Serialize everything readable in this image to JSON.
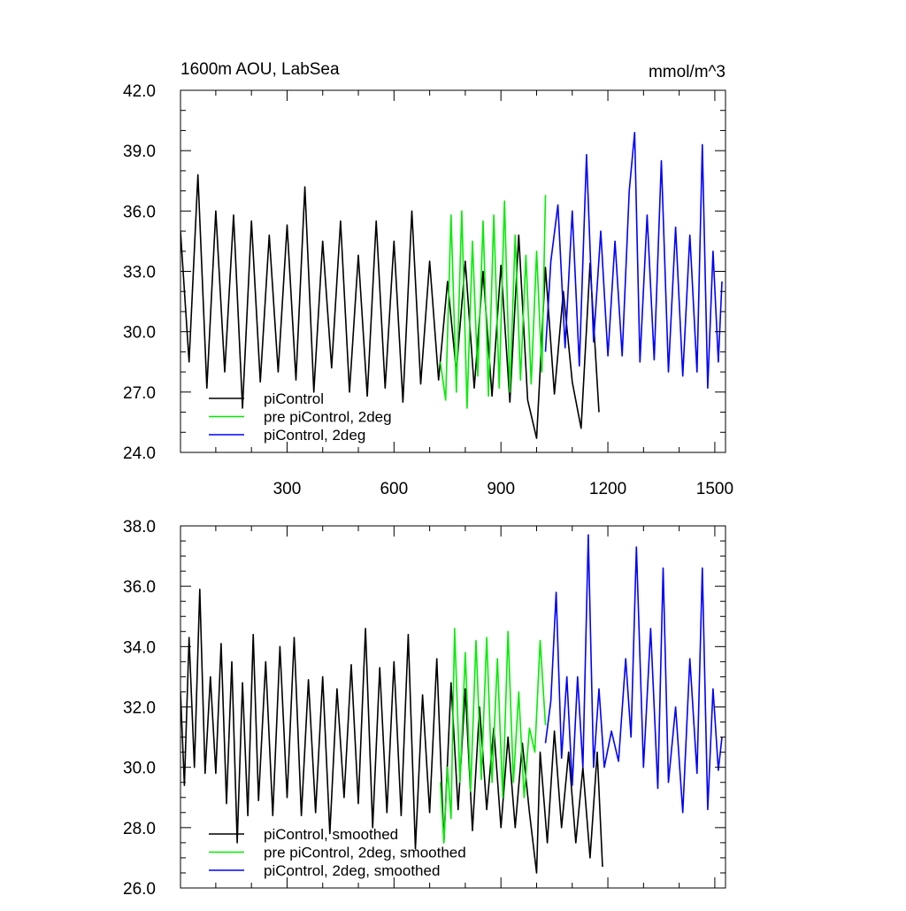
{
  "colors": {
    "piControl": "#000000",
    "pre_piControl_2deg": "#00ee00",
    "piControl_2deg": "#0000ff",
    "axis": "#000000",
    "background": "#ffffff"
  },
  "chart_data": [
    {
      "type": "line",
      "title": "1600m AOU, LabSea",
      "units": "mmol/m^3",
      "xlabel": "",
      "ylabel": "",
      "xlim": [
        1,
        1530
      ],
      "ylim": [
        24.0,
        42.0
      ],
      "x_ticks": [
        300,
        600,
        900,
        1200,
        1500
      ],
      "x_tick_labels": [
        "300",
        "600",
        "900",
        "1200",
        "1500"
      ],
      "y_ticks": [
        24.0,
        27.0,
        30.0,
        33.0,
        36.0,
        39.0,
        42.0
      ],
      "y_tick_labels": [
        "24.0",
        "27.0",
        "30.0",
        "33.0",
        "36.0",
        "39.0",
        "42.0"
      ],
      "grid": false,
      "legend_position": "bottom-left",
      "series": [
        {
          "name": "piControl",
          "color_key": "piControl",
          "x": [
            1,
            25,
            50,
            75,
            100,
            125,
            150,
            175,
            200,
            225,
            250,
            275,
            300,
            325,
            350,
            375,
            400,
            425,
            450,
            475,
            500,
            525,
            550,
            575,
            600,
            625,
            650,
            675,
            700,
            725,
            750,
            775,
            800,
            825,
            850,
            875,
            900,
            925,
            950,
            975,
            1000,
            1025,
            1050,
            1075,
            1100,
            1125,
            1150,
            1175
          ],
          "values": [
            35.0,
            28.5,
            37.8,
            27.2,
            36.0,
            28.0,
            35.8,
            26.2,
            35.5,
            27.5,
            34.8,
            28.0,
            35.3,
            27.6,
            37.2,
            27.0,
            34.5,
            28.2,
            35.5,
            27.0,
            33.8,
            26.8,
            35.5,
            27.2,
            34.5,
            26.5,
            36.0,
            27.4,
            33.5,
            27.6,
            32.5,
            28.0,
            33.5,
            27.2,
            33.0,
            26.8,
            33.3,
            26.5,
            34.8,
            26.6,
            24.7,
            33.2,
            26.9,
            32.0,
            27.5,
            25.2,
            33.4,
            26.0
          ]
        },
        {
          "name": "pre piControl, 2deg",
          "color_key": "pre_piControl_2deg",
          "x": [
            730,
            745,
            760,
            775,
            790,
            805,
            820,
            835,
            850,
            865,
            880,
            895,
            910,
            925,
            940,
            955,
            970,
            985,
            1000,
            1015,
            1025
          ],
          "values": [
            28.5,
            26.6,
            35.8,
            27.0,
            36.0,
            26.2,
            34.5,
            27.8,
            35.5,
            26.8,
            35.8,
            27.2,
            36.5,
            27.0,
            34.8,
            27.6,
            33.8,
            27.4,
            34.0,
            28.0,
            36.8
          ]
        },
        {
          "name": "piControl, 2deg",
          "color_key": "piControl_2deg",
          "x": [
            1025,
            1040,
            1060,
            1080,
            1100,
            1120,
            1140,
            1160,
            1180,
            1200,
            1220,
            1240,
            1260,
            1275,
            1290,
            1310,
            1330,
            1350,
            1370,
            1390,
            1410,
            1430,
            1450,
            1465,
            1480,
            1495,
            1510,
            1520
          ],
          "values": [
            29.0,
            33.5,
            36.3,
            29.2,
            36.0,
            28.3,
            38.8,
            29.5,
            35.0,
            28.8,
            34.5,
            28.8,
            37.0,
            39.9,
            28.5,
            35.8,
            28.6,
            38.5,
            28.0,
            35.2,
            27.8,
            34.8,
            28.0,
            39.3,
            27.2,
            34.0,
            28.5,
            32.5
          ]
        }
      ],
      "legend": [
        "piControl",
        "pre piControl, 2deg",
        "piControl, 2deg"
      ]
    },
    {
      "type": "line",
      "title": "",
      "units": "",
      "xlabel": "",
      "ylabel": "",
      "xlim": [
        1,
        1530
      ],
      "ylim": [
        26.0,
        38.0
      ],
      "x_ticks": [
        300,
        600,
        900,
        1200,
        1500
      ],
      "x_tick_labels": [],
      "y_ticks": [
        26.0,
        28.0,
        30.0,
        32.0,
        34.0,
        36.0,
        38.0
      ],
      "y_tick_labels": [
        "26.0",
        "28.0",
        "30.0",
        "32.0",
        "34.0",
        "36.0",
        "38.0"
      ],
      "grid": false,
      "legend_position": "bottom-left",
      "series": [
        {
          "name": "piControl, smoothed",
          "color_key": "piControl",
          "x": [
            1,
            12,
            25,
            40,
            55,
            70,
            85,
            100,
            115,
            130,
            145,
            160,
            175,
            190,
            205,
            220,
            240,
            260,
            280,
            300,
            320,
            340,
            360,
            380,
            400,
            420,
            440,
            460,
            480,
            500,
            520,
            540,
            560,
            580,
            600,
            620,
            640,
            660,
            680,
            700,
            720,
            740,
            760,
            780,
            800,
            820,
            840,
            860,
            880,
            900,
            920,
            940,
            960,
            980,
            1000,
            1010,
            1030,
            1050,
            1070,
            1090,
            1110,
            1130,
            1150,
            1170,
            1185
          ],
          "values": [
            32.5,
            29.4,
            34.3,
            30.0,
            35.9,
            29.8,
            33.0,
            29.8,
            34.1,
            28.8,
            33.5,
            27.5,
            32.8,
            28.4,
            34.4,
            28.9,
            33.5,
            28.4,
            34.0,
            29.0,
            34.3,
            28.4,
            32.9,
            28.5,
            33.0,
            27.8,
            32.6,
            29.0,
            33.4,
            28.8,
            34.6,
            28.0,
            33.3,
            28.5,
            33.5,
            28.4,
            34.4,
            27.3,
            32.4,
            28.5,
            33.6,
            27.5,
            32.8,
            28.6,
            32.6,
            27.9,
            32.0,
            28.6,
            31.3,
            28.0,
            31.0,
            28.0,
            30.8,
            28.5,
            26.5,
            30.5,
            27.5,
            31.2,
            28.0,
            30.5,
            27.5,
            30.0,
            27.0,
            30.5,
            26.7
          ]
        },
        {
          "name": "pre piControl, 2deg, smoothed",
          "color_key": "pre_piControl_2deg",
          "x": [
            730,
            740,
            750,
            760,
            770,
            785,
            800,
            815,
            830,
            845,
            860,
            875,
            890,
            905,
            920,
            935,
            950,
            965,
            980,
            995,
            1010,
            1025
          ],
          "values": [
            29.5,
            27.5,
            30.0,
            28.3,
            34.6,
            29.5,
            33.8,
            29.2,
            34.2,
            29.6,
            34.3,
            29.5,
            33.6,
            29.0,
            34.5,
            29.5,
            32.5,
            29.0,
            31.3,
            30.5,
            34.2,
            31.4
          ]
        },
        {
          "name": "piControl, 2deg, smoothed",
          "color_key": "piControl_2deg",
          "x": [
            1025,
            1040,
            1055,
            1070,
            1085,
            1100,
            1115,
            1130,
            1145,
            1160,
            1175,
            1190,
            1210,
            1230,
            1250,
            1265,
            1280,
            1300,
            1320,
            1340,
            1355,
            1370,
            1390,
            1410,
            1430,
            1450,
            1465,
            1480,
            1495,
            1510,
            1520
          ],
          "values": [
            30.8,
            32.2,
            35.8,
            30.3,
            33.0,
            29.4,
            33.0,
            30.0,
            37.7,
            30.0,
            32.6,
            30.0,
            31.2,
            30.2,
            33.6,
            31.0,
            37.3,
            30.0,
            34.6,
            29.3,
            36.6,
            29.5,
            32.0,
            28.5,
            33.6,
            29.8,
            36.6,
            28.6,
            32.6,
            29.9,
            31.0
          ]
        }
      ],
      "legend": [
        "piControl, smoothed",
        "pre piControl, 2deg, smoothed",
        "piControl, 2deg, smoothed"
      ]
    }
  ]
}
